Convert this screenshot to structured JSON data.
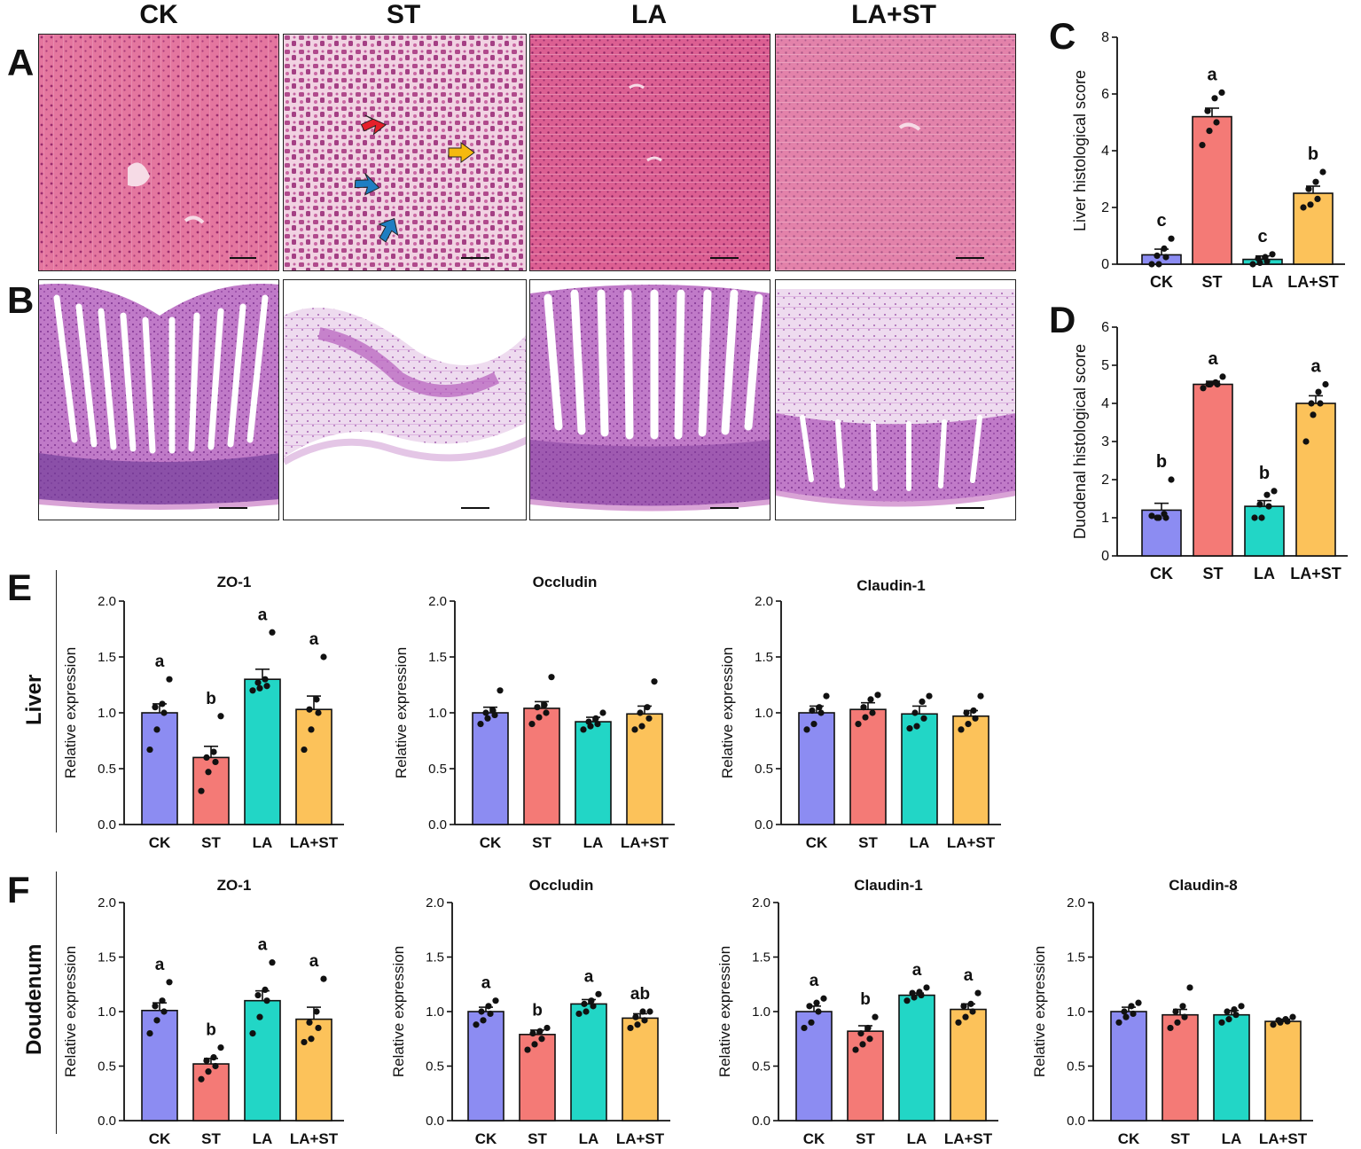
{
  "groups": [
    "CK",
    "ST",
    "LA",
    "LA+ST"
  ],
  "panel_letters": {
    "A": "A",
    "B": "B",
    "C": "C",
    "D": "D",
    "E": "E",
    "F": "F"
  },
  "row_labels": {
    "liver": "Liver",
    "duodenum": "Doudenum"
  },
  "colors": {
    "CK": "#8c8cf2",
    "ST": "#f47a76",
    "LA": "#22d6c6",
    "LA+ST": "#fcc25a",
    "he_liver": "#e6709a",
    "he_gut": "#b75fbf",
    "arrow_red": "#e5202a",
    "arrow_yellow": "#f5b90f",
    "arrow_blue": "#1f7ec2"
  },
  "chart_data": [
    {
      "id": "C",
      "type": "bar",
      "title": "",
      "categories": [
        "CK",
        "ST",
        "LA",
        "LA+ST"
      ],
      "values": [
        0.33,
        5.2,
        0.17,
        2.5
      ],
      "errors": [
        0.2,
        0.3,
        0.12,
        0.25
      ],
      "points": [
        [
          0,
          0,
          0.25,
          0.3,
          0.55,
          0.9
        ],
        [
          4.2,
          4.7,
          5.0,
          5.4,
          5.85,
          6.05
        ],
        [
          0,
          0.05,
          0.1,
          0.2,
          0.25,
          0.35
        ],
        [
          2.0,
          2.1,
          2.3,
          2.65,
          2.9,
          3.25
        ]
      ],
      "letters": [
        "c",
        "a",
        "c",
        "b"
      ],
      "ylabel": "Liver histological score",
      "ylim": [
        0,
        8
      ],
      "yticks": [
        0,
        2,
        4,
        6,
        8
      ]
    },
    {
      "id": "D",
      "type": "bar",
      "title": "",
      "categories": [
        "CK",
        "ST",
        "LA",
        "LA+ST"
      ],
      "values": [
        1.2,
        4.5,
        1.3,
        4.0
      ],
      "errors": [
        0.18,
        0.08,
        0.15,
        0.2
      ],
      "points": [
        [
          1.05,
          1.0,
          1.0,
          1.0,
          1.1,
          2.0
        ],
        [
          4.4,
          4.5,
          4.5,
          4.5,
          4.55,
          4.7
        ],
        [
          1.0,
          1.0,
          1.3,
          1.35,
          1.6,
          1.7
        ],
        [
          3.0,
          3.7,
          4.0,
          4.0,
          4.3,
          4.5
        ]
      ],
      "letters": [
        "b",
        "a",
        "b",
        "a"
      ],
      "ylabel": "Duodenal histological score",
      "ylim": [
        0,
        6
      ],
      "yticks": [
        0,
        1,
        2,
        3,
        4,
        5,
        6
      ]
    },
    {
      "id": "E1",
      "type": "bar",
      "title": "ZO-1",
      "categories": [
        "CK",
        "ST",
        "LA",
        "LA+ST"
      ],
      "values": [
        1.0,
        0.6,
        1.3,
        1.03
      ],
      "errors": [
        0.08,
        0.1,
        0.09,
        0.12
      ],
      "points": [
        [
          0.67,
          0.85,
          1.0,
          1.05,
          1.08,
          1.3
        ],
        [
          0.3,
          0.47,
          0.56,
          0.6,
          0.65,
          0.97
        ],
        [
          1.2,
          1.22,
          1.24,
          1.27,
          1.3,
          1.72
        ],
        [
          0.67,
          0.85,
          1.0,
          1.03,
          1.12,
          1.5
        ]
      ],
      "letters": [
        "a",
        "b",
        "a",
        "a"
      ],
      "ylabel": "Relative expression",
      "ylim": [
        0,
        2.0
      ],
      "yticks": [
        "0.0",
        "0.5",
        "1.0",
        "1.5",
        "2.0"
      ]
    },
    {
      "id": "E2",
      "type": "bar",
      "title": "Occludin",
      "categories": [
        "CK",
        "ST",
        "LA",
        "LA+ST"
      ],
      "values": [
        1.0,
        1.04,
        0.92,
        0.99
      ],
      "errors": [
        0.05,
        0.06,
        0.04,
        0.07
      ],
      "points": [
        [
          0.9,
          0.95,
          0.98,
          1.0,
          1.02,
          1.2
        ],
        [
          0.9,
          0.96,
          1.0,
          1.05,
          1.07,
          1.32
        ],
        [
          0.85,
          0.88,
          0.9,
          0.92,
          0.95,
          1.0
        ],
        [
          0.85,
          0.88,
          0.95,
          1.0,
          1.05,
          1.28
        ]
      ],
      "letters": [
        "",
        "",
        "",
        ""
      ],
      "ylabel": "Relative expression",
      "ylim": [
        0,
        2.0
      ],
      "yticks": [
        "0.0",
        "0.5",
        "1.0",
        "1.5",
        "2.0"
      ]
    },
    {
      "id": "E3",
      "type": "bar",
      "title": "Claudin-1",
      "categories": [
        "CK",
        "ST",
        "LA",
        "LA+ST"
      ],
      "values": [
        1.0,
        1.03,
        0.99,
        0.97
      ],
      "errors": [
        0.06,
        0.06,
        0.07,
        0.05
      ],
      "points": [
        [
          0.85,
          0.9,
          1.0,
          1.02,
          1.05,
          1.15
        ],
        [
          0.9,
          0.96,
          1.0,
          1.05,
          1.12,
          1.16
        ],
        [
          0.86,
          0.88,
          0.95,
          1.0,
          1.1,
          1.15
        ],
        [
          0.85,
          0.9,
          0.95,
          1.0,
          1.02,
          1.15
        ]
      ],
      "letters": [
        "",
        "",
        "",
        ""
      ],
      "ylabel": "Relative expression",
      "ylim": [
        0,
        2.0
      ],
      "yticks": [
        "0.0",
        "0.5",
        "1.0",
        "1.5",
        "2.0"
      ]
    },
    {
      "id": "F1",
      "type": "bar",
      "title": "ZO-1",
      "categories": [
        "CK",
        "ST",
        "LA",
        "LA+ST"
      ],
      "values": [
        1.01,
        0.52,
        1.1,
        0.93
      ],
      "errors": [
        0.07,
        0.05,
        0.09,
        0.11
      ],
      "points": [
        [
          0.8,
          0.92,
          1.0,
          1.05,
          1.1,
          1.27
        ],
        [
          0.38,
          0.45,
          0.5,
          0.55,
          0.58,
          0.67
        ],
        [
          0.8,
          0.95,
          1.1,
          1.15,
          1.2,
          1.45
        ],
        [
          0.72,
          0.75,
          0.85,
          0.9,
          1.0,
          1.3
        ]
      ],
      "letters": [
        "a",
        "b",
        "a",
        "a"
      ],
      "ylabel": "Relative expression",
      "ylim": [
        0,
        2.0
      ],
      "yticks": [
        "0.0",
        "0.5",
        "1.0",
        "1.5",
        "2.0"
      ]
    },
    {
      "id": "F2",
      "type": "bar",
      "title": "Occludin",
      "categories": [
        "CK",
        "ST",
        "LA",
        "LA+ST"
      ],
      "values": [
        1.0,
        0.79,
        1.07,
        0.94
      ],
      "errors": [
        0.04,
        0.04,
        0.04,
        0.04
      ],
      "points": [
        [
          0.88,
          0.92,
          0.98,
          1.0,
          1.05,
          1.1
        ],
        [
          0.65,
          0.7,
          0.75,
          0.8,
          0.82,
          0.85
        ],
        [
          0.98,
          1.0,
          1.05,
          1.07,
          1.1,
          1.16
        ],
        [
          0.85,
          0.88,
          0.92,
          0.95,
          1.0,
          1.0
        ]
      ],
      "letters": [
        "a",
        "b",
        "a",
        "ab"
      ],
      "ylabel": "Relative expression",
      "ylim": [
        0,
        2.0
      ],
      "yticks": [
        "0.0",
        "0.5",
        "1.0",
        "1.5",
        "2.0"
      ]
    },
    {
      "id": "F3",
      "type": "bar",
      "title": "Claudin-1",
      "categories": [
        "CK",
        "ST",
        "LA",
        "LA+ST"
      ],
      "values": [
        1.0,
        0.82,
        1.15,
        1.02
      ],
      "errors": [
        0.05,
        0.05,
        0.02,
        0.05
      ],
      "points": [
        [
          0.85,
          0.9,
          1.0,
          1.05,
          1.08,
          1.12
        ],
        [
          0.65,
          0.7,
          0.75,
          0.8,
          0.85,
          0.95
        ],
        [
          1.1,
          1.13,
          1.15,
          1.17,
          1.18,
          1.22
        ],
        [
          0.9,
          0.95,
          1.0,
          1.05,
          1.07,
          1.17
        ]
      ],
      "letters": [
        "a",
        "b",
        "a",
        "a"
      ],
      "ylabel": "Relative expression",
      "ylim": [
        0,
        2.0
      ],
      "yticks": [
        "0.0",
        "0.5",
        "1.0",
        "1.5",
        "2.0"
      ]
    },
    {
      "id": "F4",
      "type": "bar",
      "title": "Claudin-8",
      "categories": [
        "CK",
        "ST",
        "LA",
        "LA+ST"
      ],
      "values": [
        1.0,
        0.97,
        0.97,
        0.91
      ],
      "errors": [
        0.04,
        0.05,
        0.04,
        0.02
      ],
      "points": [
        [
          0.9,
          0.95,
          0.98,
          1.0,
          1.05,
          1.08
        ],
        [
          0.85,
          0.9,
          0.95,
          1.0,
          1.05,
          1.22
        ],
        [
          0.9,
          0.93,
          0.97,
          1.0,
          1.02,
          1.05
        ],
        [
          0.88,
          0.9,
          0.91,
          0.92,
          0.93,
          0.95
        ]
      ],
      "letters": [
        "",
        "",
        "",
        ""
      ],
      "ylabel": "Relative expression",
      "ylim": [
        0,
        2.0
      ],
      "yticks": [
        "0.0",
        "0.5",
        "1.0",
        "1.5",
        "2.0"
      ]
    }
  ]
}
